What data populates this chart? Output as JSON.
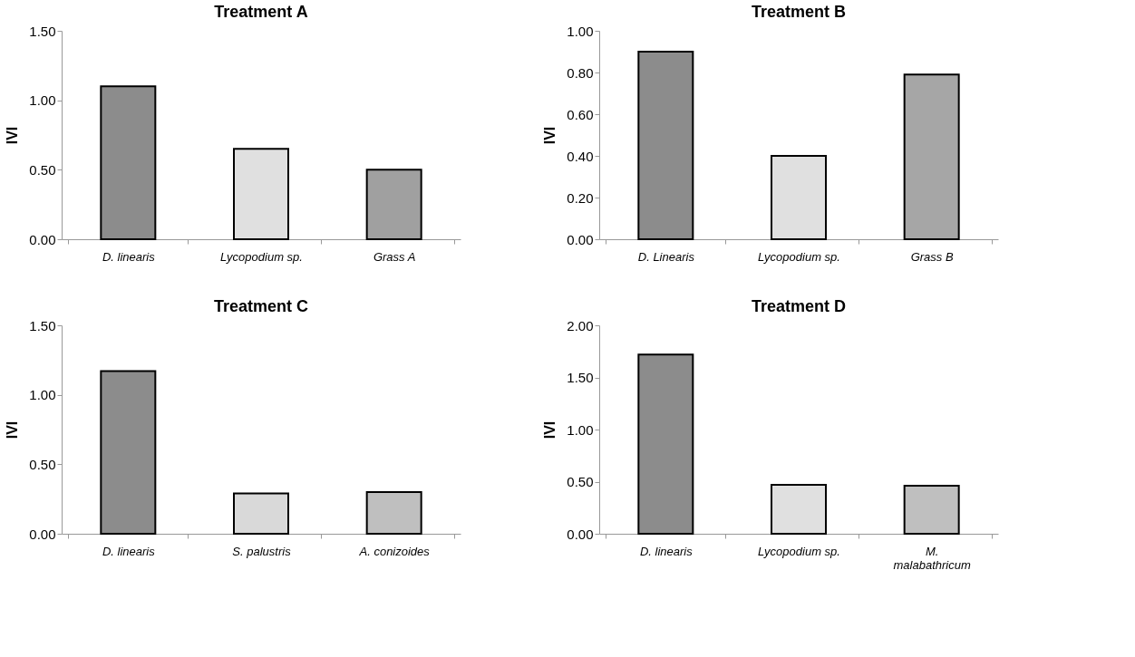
{
  "chart_data": [
    {
      "type": "bar",
      "title": "Treatment A",
      "ylabel": "IVI",
      "categories": [
        "D. linearis",
        "Lycopodium sp.",
        "Grass A"
      ],
      "values": [
        1.1,
        0.65,
        0.5
      ],
      "colors": [
        "#8c8c8c",
        "#e0e0e0",
        "#a0a0a0"
      ],
      "ylim": [
        0,
        1.5
      ],
      "yticks": [
        {
          "value": 0,
          "label": "0.00"
        },
        {
          "value": 0.5,
          "label": "0.50"
        },
        {
          "value": 1,
          "label": "1.00"
        },
        {
          "value": 1.5,
          "label": "1.50"
        }
      ],
      "grid": false,
      "legend": false
    },
    {
      "type": "bar",
      "title": "Treatment B",
      "ylabel": "IVI",
      "categories": [
        "D. Linearis",
        "Lycopodium sp.",
        "Grass B"
      ],
      "values": [
        0.9,
        0.4,
        0.79
      ],
      "colors": [
        "#8c8c8c",
        "#e0e0e0",
        "#a6a6a6"
      ],
      "ylim": [
        0,
        1
      ],
      "yticks": [
        {
          "value": 0,
          "label": "0.00"
        },
        {
          "value": 0.2,
          "label": "0.20"
        },
        {
          "value": 0.4,
          "label": "0.40"
        },
        {
          "value": 0.6,
          "label": "0.60"
        },
        {
          "value": 0.8,
          "label": "0.80"
        },
        {
          "value": 1,
          "label": "1.00"
        }
      ],
      "grid": false,
      "legend": false
    },
    {
      "type": "bar",
      "title": "Treatment C",
      "ylabel": "IVI",
      "categories": [
        "D. linearis",
        "S. palustris",
        "A. conizoides"
      ],
      "values": [
        1.17,
        0.29,
        0.3
      ],
      "colors": [
        "#8c8c8c",
        "#d9d9d9",
        "#bfbfbf"
      ],
      "ylim": [
        0,
        1.5
      ],
      "yticks": [
        {
          "value": 0,
          "label": "0.00"
        },
        {
          "value": 0.5,
          "label": "0.50"
        },
        {
          "value": 1,
          "label": "1.00"
        },
        {
          "value": 1.5,
          "label": "1.50"
        }
      ],
      "grid": false,
      "legend": false
    },
    {
      "type": "bar",
      "title": "Treatment D",
      "ylabel": "IVI",
      "categories": [
        "D. linearis",
        "Lycopodium sp.",
        "M. malabathricum"
      ],
      "values": [
        1.72,
        0.47,
        0.46
      ],
      "colors": [
        "#8c8c8c",
        "#e0e0e0",
        "#bfbfbf"
      ],
      "ylim": [
        0,
        2
      ],
      "yticks": [
        {
          "value": 0,
          "label": "0.00"
        },
        {
          "value": 0.5,
          "label": "0.50"
        },
        {
          "value": 1,
          "label": "1.00"
        },
        {
          "value": 1.5,
          "label": "1.50"
        },
        {
          "value": 2,
          "label": "2.00"
        }
      ],
      "grid": false,
      "legend": false
    }
  ]
}
